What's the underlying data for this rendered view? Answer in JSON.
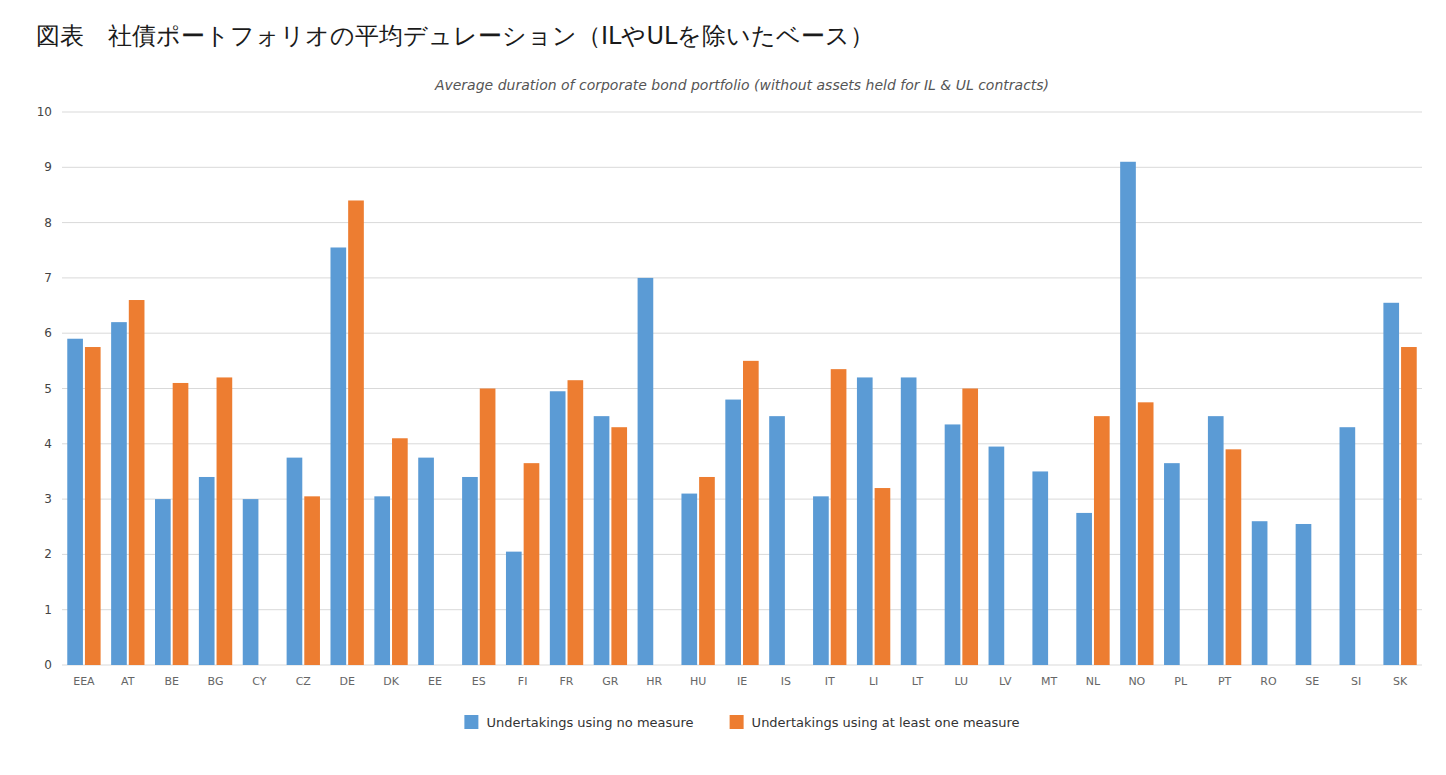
{
  "chart_data": {
    "type": "bar",
    "title": "図表　社債ポートフォリオの平均デュレーション（ILやULを除いたベース）",
    "subtitle": "Average duration of corporate bond portfolio (without assets held for IL & UL contracts)",
    "categories": [
      "EEA",
      "AT",
      "BE",
      "BG",
      "CY",
      "CZ",
      "DE",
      "DK",
      "EE",
      "ES",
      "FI",
      "FR",
      "GR",
      "HR",
      "HU",
      "IE",
      "IS",
      "IT",
      "LI",
      "LT",
      "LU",
      "LV",
      "MT",
      "NL",
      "NO",
      "PL",
      "PT",
      "RO",
      "SE",
      "SI",
      "SK"
    ],
    "series": [
      {
        "name": "Undertakings using no measure",
        "color": "#5B9BD5",
        "values": [
          5.9,
          6.2,
          3.0,
          3.4,
          3.0,
          3.75,
          7.55,
          3.05,
          3.75,
          3.4,
          2.05,
          4.95,
          4.5,
          7.0,
          3.1,
          4.8,
          4.5,
          3.05,
          5.2,
          5.2,
          4.35,
          3.95,
          3.5,
          2.75,
          9.1,
          3.65,
          4.5,
          2.6,
          2.55,
          4.3,
          6.55
        ]
      },
      {
        "name": "Undertakings using at least one measure",
        "color": "#ED7D31",
        "values": [
          5.75,
          6.6,
          5.1,
          5.2,
          null,
          3.05,
          8.4,
          4.1,
          null,
          5.0,
          3.65,
          5.15,
          4.3,
          null,
          3.4,
          5.5,
          null,
          5.35,
          3.2,
          null,
          5.0,
          null,
          null,
          4.5,
          4.75,
          null,
          3.9,
          null,
          null,
          null,
          5.75
        ]
      }
    ],
    "ylim": [
      0,
      10
    ],
    "yticks": [
      0,
      1,
      2,
      3,
      4,
      5,
      6,
      7,
      8,
      9,
      10
    ],
    "grid": true,
    "legend": "bottom"
  }
}
